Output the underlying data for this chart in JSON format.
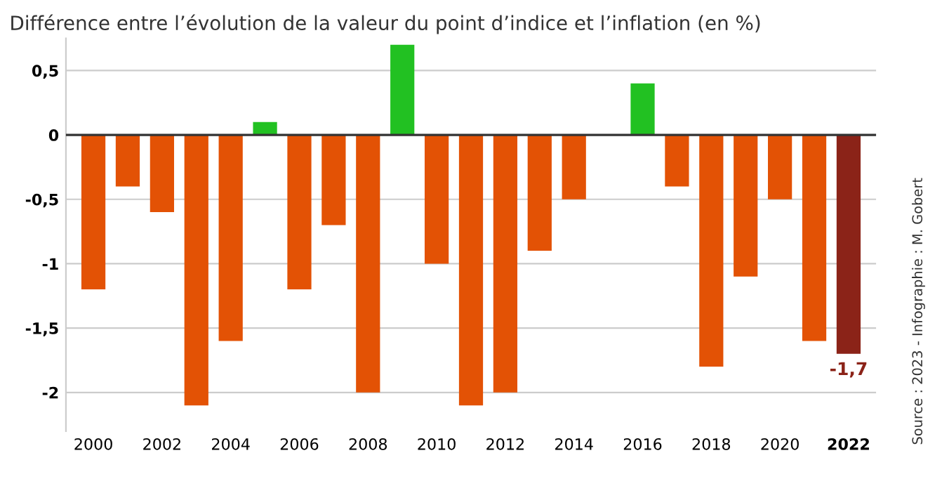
{
  "chart_data": {
    "type": "bar",
    "title": "Différence entre l’évolution de la valeur du point d’indice et l’inflation (en %)",
    "categories": [
      "2000",
      null,
      "2002",
      null,
      "2004",
      null,
      "2006",
      null,
      "2008",
      null,
      "2010",
      null,
      "2012",
      null,
      "2014",
      null,
      "2016",
      null,
      "2018",
      null,
      "2020",
      null,
      "2022"
    ],
    "values": [
      -1.2,
      -0.4,
      -0.6,
      -2.1,
      -1.6,
      0.1,
      -1.2,
      -0.7,
      -2.0,
      0.7,
      -1.0,
      -2.1,
      -2.0,
      -0.9,
      -0.5,
      0,
      0.4,
      -0.4,
      -1.8,
      -1.1,
      -0.5,
      -1.6,
      -1.7
    ],
    "colors": [
      "#e35205",
      "#e35205",
      "#e35205",
      "#e35205",
      "#e35205",
      "#22c122",
      "#e35205",
      "#e35205",
      "#e35205",
      "#22c122",
      "#e35205",
      "#e35205",
      "#e35205",
      "#e35205",
      "#e35205",
      "#333333",
      "#22c122",
      "#e35205",
      "#e35205",
      "#e35205",
      "#e35205",
      "#e35205",
      "#8b2318"
    ],
    "value_labels": [
      null,
      null,
      null,
      null,
      null,
      null,
      null,
      null,
      null,
      null,
      null,
      null,
      null,
      null,
      null,
      null,
      null,
      null,
      null,
      null,
      null,
      null,
      "-1,7"
    ],
    "ylim": [
      -2.3,
      0.75
    ],
    "yticks": [
      {
        "value": 0.5,
        "label": "0,5"
      },
      0,
      {
        "value": -0.5,
        "label": "-0,5"
      },
      {
        "value": -1,
        "label": "-1"
      },
      {
        "value": -1.5,
        "label": "-1,5"
      },
      {
        "value": -2,
        "label": "-2"
      }
    ],
    "grid": "y",
    "ref_lines": [
      {
        "axis": "y",
        "value": 0,
        "color": "#333333"
      }
    ],
    "annotations": [
      "Source : 2023 - Infographie : M. Gobert"
    ]
  }
}
